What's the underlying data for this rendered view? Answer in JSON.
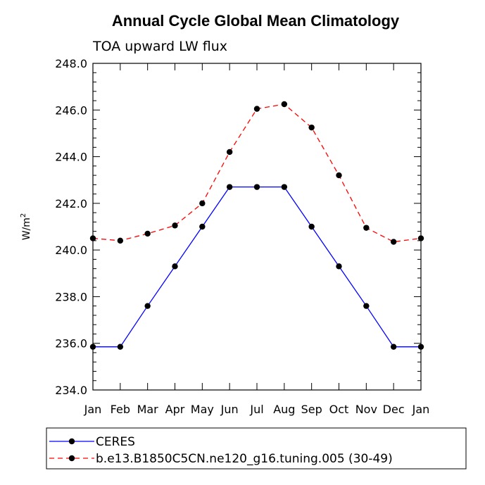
{
  "chart_data": {
    "type": "line",
    "title": "Annual Cycle Global Mean Climatology",
    "subtitle": "TOA upward LW flux",
    "xlabel": "",
    "ylabel": "W/m",
    "ylabel_superscript": "2",
    "ylim": [
      234.0,
      248.0
    ],
    "yticks": [
      234.0,
      236.0,
      238.0,
      240.0,
      242.0,
      244.0,
      246.0,
      248.0
    ],
    "ytick_labels": [
      "234.0",
      "236.0",
      "238.0",
      "240.0",
      "242.0",
      "244.0",
      "246.0",
      "248.0"
    ],
    "categories": [
      "Jan",
      "Feb",
      "Mar",
      "Apr",
      "May",
      "Jun",
      "Jul",
      "Aug",
      "Sep",
      "Oct",
      "Nov",
      "Dec",
      "Jan"
    ],
    "series": [
      {
        "name": "CERES",
        "color": "#0000ff",
        "dash": "solid",
        "values": [
          235.85,
          235.85,
          237.6,
          239.3,
          241.0,
          242.7,
          242.7,
          242.7,
          241.0,
          239.3,
          237.6,
          235.85,
          235.85
        ]
      },
      {
        "name": "b.e13.B1850C5CN.ne120_g16.tuning.005 (30-49)",
        "color": "#ff0000",
        "dash": "dashed",
        "values": [
          240.5,
          240.4,
          240.7,
          241.05,
          242.0,
          244.2,
          246.05,
          246.25,
          245.25,
          243.2,
          240.95,
          240.35,
          240.5
        ]
      }
    ],
    "legend_position": "bottom"
  }
}
